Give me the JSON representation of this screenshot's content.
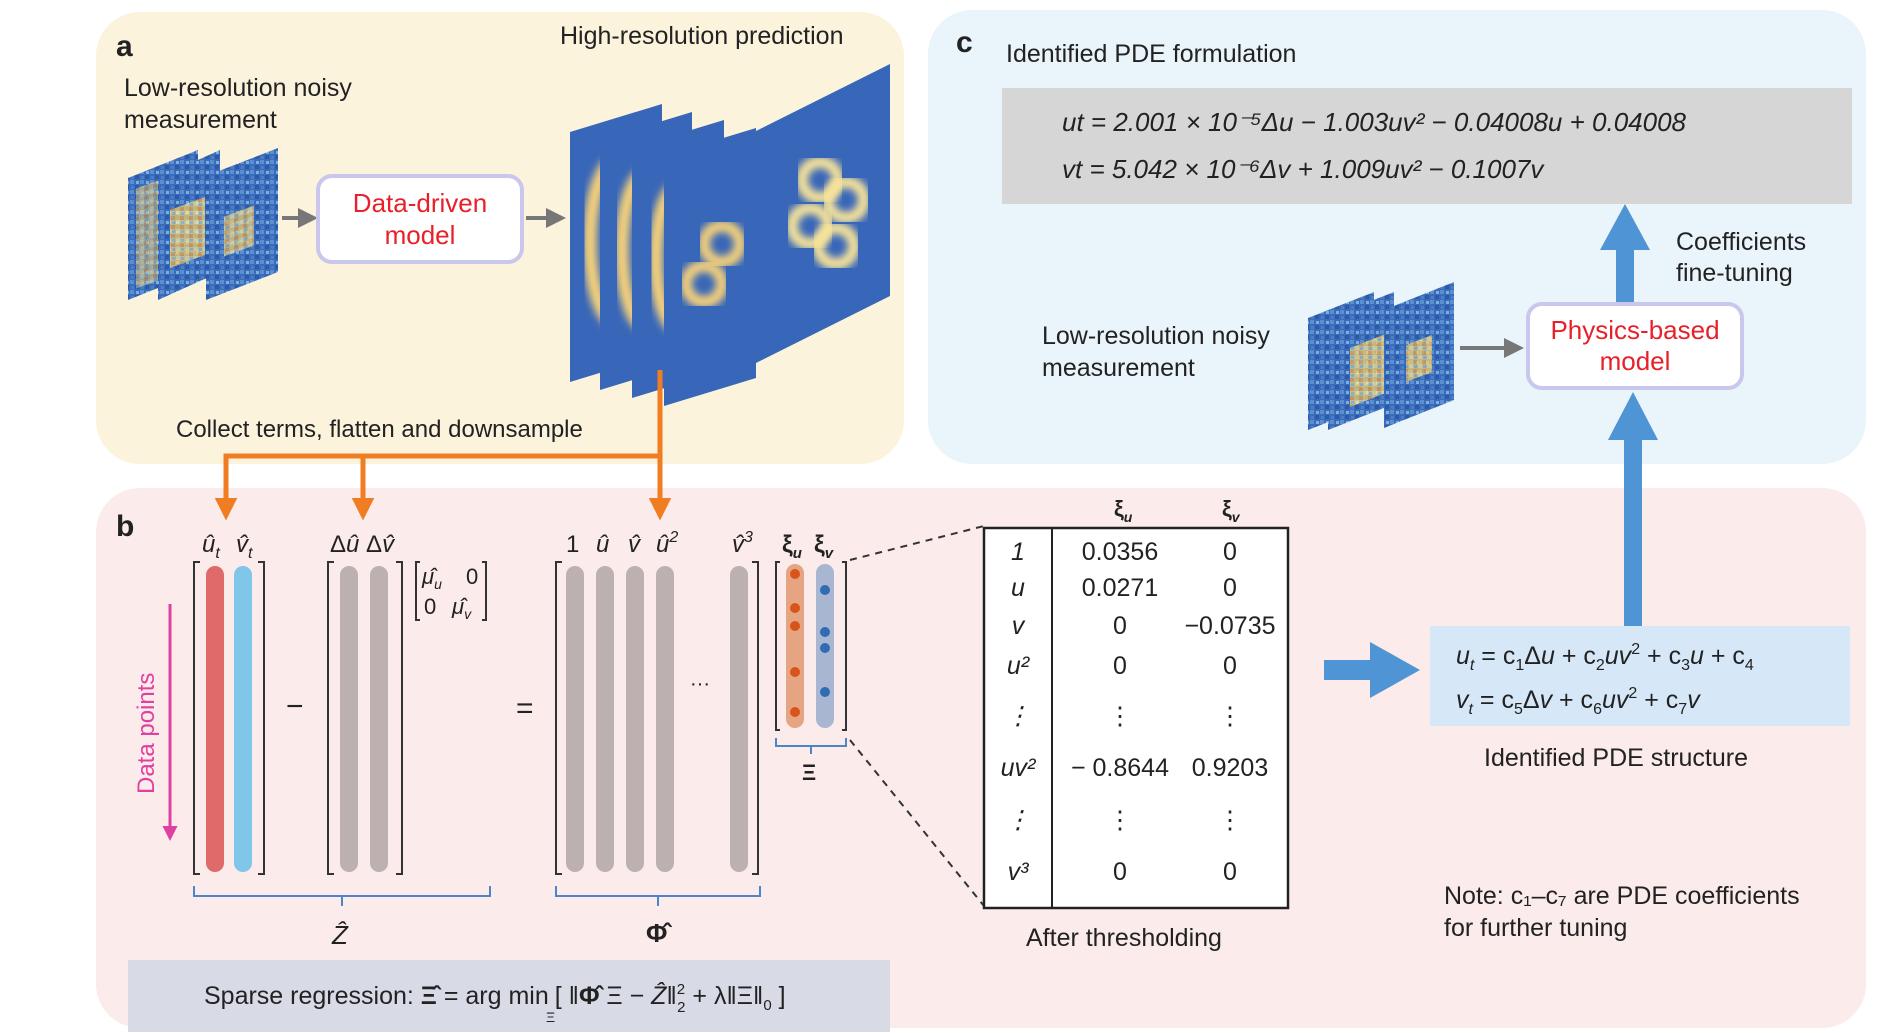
{
  "panel_a": {
    "label": "a",
    "high_res_title": "High-resolution prediction",
    "lowres_line1": "Low-resolution noisy",
    "lowres_line2": "measurement",
    "model_line1": "Data-driven",
    "model_line2": "model",
    "collect_label": "Collect terms, flatten and downsample"
  },
  "panel_b": {
    "label": "b",
    "data_points": "Data points",
    "minus": "−",
    "equals": "=",
    "ellipsis": "···",
    "z_label": "Ẑ",
    "phi_label": "Φ̂",
    "xi_label": "Ξ",
    "after_thresholding": "After thresholding",
    "regression_prefix": "Sparse regression: ",
    "regression_xi": "Ξ̂",
    "regression_eq": " = arg min",
    "regression_sub": "Ξ",
    "table": {
      "col_u": "ξu",
      "col_v": "ξv",
      "rows": [
        {
          "term": "1",
          "u": "0.0356",
          "v": "0"
        },
        {
          "term": "u",
          "u": "0.0271",
          "v": "0"
        },
        {
          "term": "v",
          "u": "0",
          "v": "−0.0735"
        },
        {
          "term": "u²",
          "u": "0",
          "v": "0"
        },
        {
          "term": "⋮",
          "u": "⋮",
          "v": "⋮"
        },
        {
          "term": "uv²",
          "u": "− 0.8644",
          "v": "0.9203"
        },
        {
          "term": "⋮",
          "u": "⋮",
          "v": "⋮"
        },
        {
          "term": "v³",
          "u": "0",
          "v": "0"
        }
      ]
    },
    "structure_caption": "Identified PDE structure",
    "note_line1": "Note: c₁–c₇ are PDE coefficients",
    "note_line2": "for further tuning"
  },
  "panel_c": {
    "label": "c",
    "title": "Identified PDE formulation",
    "eq1": "ut = 2.001 × 10⁻⁵Δu − 1.003uv² − 0.04008u + 0.04008",
    "eq2": "vt = 5.042 × 10⁻⁶Δv + 1.009uv² − 0.1007v",
    "tuning_line1": "Coefficients",
    "tuning_line2": "fine-tuning",
    "lowres_line1": "Low-resolution noisy",
    "lowres_line2": "measurement",
    "model_line1": "Physics-based",
    "model_line2": "model"
  },
  "colors": {
    "panel_a_bg": "#fbf3dc",
    "panel_b_bg": "#fbebea",
    "panel_c_bg": "#eaf4fb",
    "orange": "#f07d22",
    "blue_arrow": "#4f94d4",
    "field_blue": "#3866b8",
    "model_text_red": "#e8202a"
  }
}
